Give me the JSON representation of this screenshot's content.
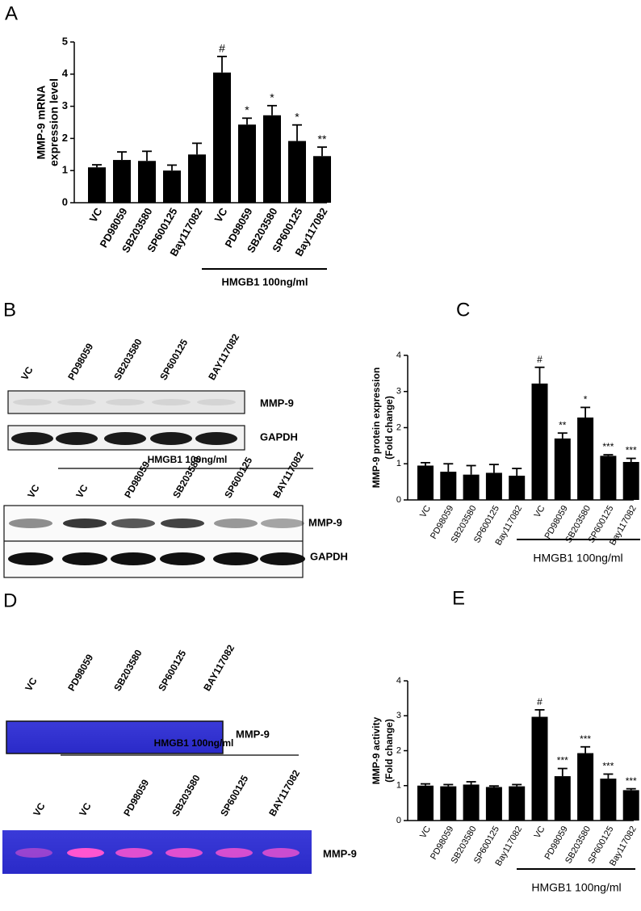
{
  "panel_labels": [
    "A",
    "B",
    "C",
    "D",
    "E"
  ],
  "chart_data": [
    {
      "type": "bar",
      "ylabel": [
        "MMP-9 mRNA",
        "expression level"
      ],
      "categories": [
        "VC",
        "PD98059",
        "SB203580",
        "SP600125",
        "Bay117082",
        "VC",
        "PD98059",
        "SB203580",
        "SP600125",
        "Bay117082"
      ],
      "values": [
        1.1,
        1.33,
        1.3,
        1.0,
        1.5,
        4.05,
        2.43,
        2.72,
        1.92,
        1.45
      ],
      "errors": [
        0.08,
        0.25,
        0.3,
        0.17,
        0.35,
        0.5,
        0.2,
        0.3,
        0.5,
        0.28
      ],
      "annotations": [
        null,
        null,
        null,
        null,
        null,
        "#",
        "*",
        "*",
        "*",
        "**"
      ],
      "group_label": "HMGB1 100ng/ml",
      "color": "#000000",
      "ylim": [
        0,
        5
      ],
      "yticks": [
        0,
        1,
        2,
        3,
        4,
        5
      ]
    },
    {
      "type": "bar",
      "ylabel": [
        "MMP-9 protein expression",
        "(Fold change)"
      ],
      "categories": [
        "VC",
        "PD98059",
        "SB203580",
        "SP600125",
        "Bay117082",
        "VC",
        "PD98059",
        "SB203580",
        "SP600125",
        "Bay117082"
      ],
      "values": [
        0.95,
        0.78,
        0.7,
        0.75,
        0.67,
        3.22,
        1.7,
        2.28,
        1.22,
        1.05
      ],
      "errors": [
        0.08,
        0.22,
        0.25,
        0.23,
        0.2,
        0.45,
        0.15,
        0.28,
        0.03,
        0.1
      ],
      "annotations": [
        null,
        null,
        null,
        null,
        null,
        "#",
        "**",
        "*",
        "***",
        "***"
      ],
      "group_label": "HMGB1 100ng/ml",
      "color": "#000000",
      "ylim": [
        0,
        4
      ],
      "yticks": [
        0,
        1,
        2,
        3,
        4
      ]
    },
    {
      "type": "bar",
      "ylabel": [
        "MMP-9 activity",
        "(Fold change)"
      ],
      "categories": [
        "VC",
        "PD98059",
        "SB203580",
        "SP600125",
        "Bay117082",
        "VC",
        "PD98059",
        "SB203580",
        "SP600125",
        "Bay117082"
      ],
      "values": [
        1.0,
        0.98,
        1.03,
        0.96,
        0.98,
        2.97,
        1.27,
        1.93,
        1.2,
        0.87
      ],
      "errors": [
        0.05,
        0.05,
        0.08,
        0.03,
        0.05,
        0.2,
        0.22,
        0.18,
        0.13,
        0.04
      ],
      "annotations": [
        null,
        null,
        null,
        null,
        null,
        "#",
        "***",
        "***",
        "***",
        "***"
      ],
      "group_label": "HMGB1 100ng/ml",
      "color": "#000000",
      "ylim": [
        0,
        4
      ],
      "yticks": [
        0,
        1,
        2,
        3,
        4
      ]
    }
  ],
  "blots": [
    {
      "upper_lanes": [
        "VC",
        "PD98059",
        "SB203580",
        "SP600125",
        "BAY117082"
      ],
      "upper_bands": [
        "MMP-9",
        "GAPDH"
      ],
      "group_label": "HMGB1 100ng/ml",
      "lower_lanes": [
        "VC",
        "VC",
        "PD98059",
        "SB203580",
        "SP600125",
        "BAY117082"
      ],
      "lower_bands": [
        "MMP-9",
        "GAPDH"
      ]
    },
    {
      "upper_lanes": [
        "VC",
        "PD98059",
        "SB203580",
        "SP600125",
        "BAY117082"
      ],
      "upper_bands": [
        "MMP-9"
      ],
      "group_label": "HMGB1 100ng/ml",
      "lower_lanes": [
        "VC",
        "VC",
        "PD98059",
        "SB203580",
        "SP600125",
        "BAY117082"
      ],
      "lower_bands": [
        "MMP-9"
      ]
    }
  ]
}
